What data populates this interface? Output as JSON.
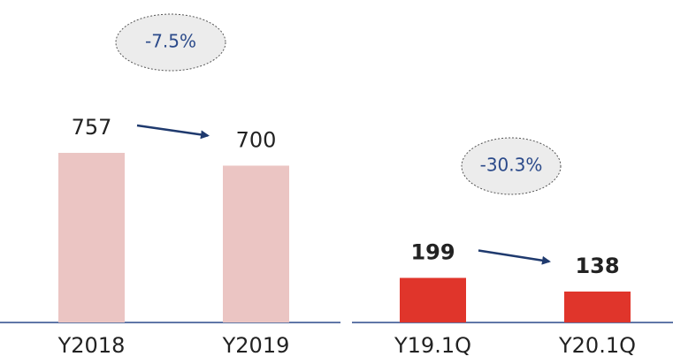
{
  "chart_data": [
    {
      "type": "bar",
      "categories": [
        "Y2018",
        "Y2019"
      ],
      "values": [
        757,
        700
      ],
      "color": "#ebc5c3",
      "annotation": "-7.5%"
    },
    {
      "type": "bar",
      "categories": [
        "Y19.1Q",
        "Y20.1Q"
      ],
      "values": [
        199,
        138
      ],
      "color": "#e0352b",
      "annotation": "-30.3%"
    }
  ]
}
